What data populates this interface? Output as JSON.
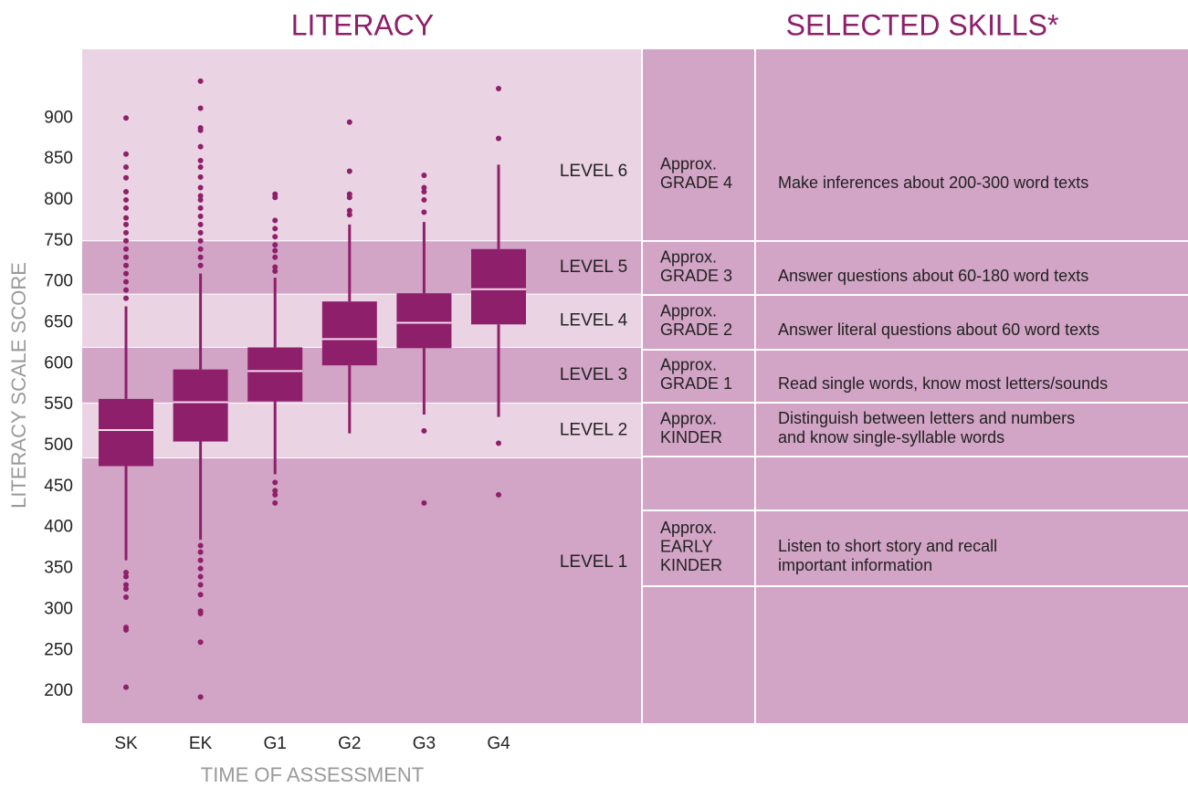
{
  "chart_data": {
    "type": "box",
    "title": "LITERACY",
    "ylabel": "LITERACY SCALE SCORE",
    "xlabel": "TIME OF ASSESSMENT",
    "categories": [
      "SK",
      "EK",
      "G1",
      "G2",
      "G3",
      "G4"
    ],
    "color": "#8e1f6b",
    "median_color": "#f3d9ea",
    "ylim": [
      160,
      985
    ],
    "yticks": [
      200,
      250,
      300,
      350,
      400,
      450,
      500,
      550,
      600,
      650,
      700,
      750,
      800,
      850,
      900
    ],
    "bands": [
      {
        "label": "LEVEL 6",
        "from": 750,
        "to": 985,
        "color": "#ead4e4"
      },
      {
        "label": "LEVEL 5",
        "from": 685,
        "to": 750,
        "color": "#d2a4c6"
      },
      {
        "label": "LEVEL 4",
        "from": 620,
        "to": 685,
        "color": "#ead4e4"
      },
      {
        "label": "LEVEL 3",
        "from": 552,
        "to": 620,
        "color": "#d2a4c6"
      },
      {
        "label": "LEVEL 2",
        "from": 485,
        "to": 552,
        "color": "#ead4e4"
      },
      {
        "label": "LEVEL 1",
        "from": 160,
        "to": 485,
        "color": "#d2a4c6"
      }
    ],
    "series": [
      {
        "whislo": 360,
        "q1": 475,
        "med": 519,
        "q3": 557,
        "whishi": 670,
        "fliers": [
          900,
          856,
          840,
          827,
          810,
          800,
          790,
          778,
          770,
          760,
          750,
          740,
          730,
          720,
          710,
          700,
          690,
          680,
          345,
          340,
          330,
          325,
          315,
          278,
          275,
          205
        ]
      },
      {
        "whislo": 385,
        "q1": 505,
        "med": 553,
        "q3": 593,
        "whishi": 710,
        "fliers": [
          945,
          912,
          888,
          885,
          865,
          848,
          840,
          828,
          815,
          805,
          800,
          790,
          780,
          770,
          760,
          750,
          740,
          730,
          720,
          378,
          370,
          360,
          350,
          340,
          330,
          318,
          298,
          295,
          260,
          193
        ]
      },
      {
        "whislo": 465,
        "q1": 554,
        "med": 591,
        "q3": 620,
        "whishi": 705,
        "fliers": [
          807,
          803,
          775,
          765,
          755,
          745,
          738,
          730,
          718,
          713,
          455,
          445,
          440,
          430
        ]
      },
      {
        "whislo": 515,
        "q1": 598,
        "med": 630,
        "q3": 676,
        "whishi": 770,
        "fliers": [
          895,
          835,
          807,
          803,
          787,
          782
        ]
      },
      {
        "whislo": 538,
        "q1": 619,
        "med": 650,
        "q3": 686,
        "whishi": 773,
        "fliers": [
          830,
          815,
          810,
          800,
          785,
          518,
          430
        ]
      },
      {
        "whislo": 535,
        "q1": 648,
        "med": 691,
        "q3": 740,
        "whishi": 843,
        "fliers": [
          936,
          875,
          503,
          440
        ]
      }
    ]
  },
  "skills": {
    "title": "SELECTED SKILLS*",
    "rows": [
      {
        "grade": [
          "Approx.",
          "GRADE 4"
        ],
        "skill": [
          "Make inferences about 200-300 word texts"
        ]
      },
      {
        "grade": [
          "Approx.",
          "GRADE 3"
        ],
        "skill": [
          "Answer questions about 60-180 word texts"
        ]
      },
      {
        "grade": [
          "Approx.",
          "GRADE 2"
        ],
        "skill": [
          "Answer literal questions about 60 word texts"
        ]
      },
      {
        "grade": [
          "Approx.",
          "GRADE 1"
        ],
        "skill": [
          "Read single words, know most letters/sounds"
        ]
      },
      {
        "grade": [
          "Approx.",
          "KINDER"
        ],
        "skill": [
          "Distinguish between letters and numbers",
          "and know single-syllable words"
        ]
      },
      {
        "grade": [
          "Approx.",
          "EARLY",
          "KINDER"
        ],
        "skill": [
          "Listen to short story and recall",
          "important information"
        ]
      }
    ]
  }
}
